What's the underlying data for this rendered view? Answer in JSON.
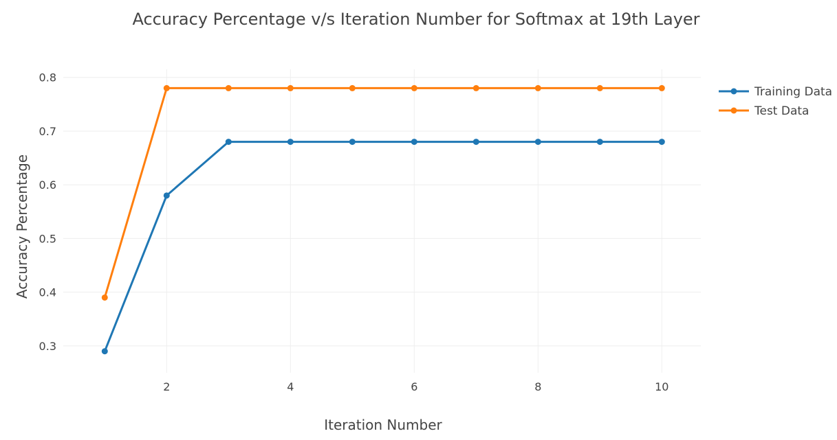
{
  "chart_data": {
    "type": "line",
    "title": "Accuracy Percentage v/s Iteration Number for Softmax at 19th Layer",
    "xlabel": "Iteration Number",
    "ylabel": "Accuracy Percentage",
    "x": [
      1,
      2,
      3,
      4,
      5,
      6,
      7,
      8,
      9,
      10
    ],
    "xticks": [
      2,
      4,
      6,
      8,
      10
    ],
    "xtick_labels": [
      "2",
      "4",
      "6",
      "8",
      "10"
    ],
    "yticks": [
      0.3,
      0.4,
      0.5,
      0.6,
      0.7,
      0.8
    ],
    "ytick_labels": [
      "0.3",
      "0.4",
      "0.5",
      "0.6",
      "0.7",
      "0.8"
    ],
    "xlim": [
      0.33,
      10.63
    ],
    "ylim": [
      0.25,
      0.815
    ],
    "grid": true,
    "legend_position": "top-right",
    "series": [
      {
        "name": "Training Data",
        "color": "#1f77b4",
        "values": [
          0.29,
          0.58,
          0.68,
          0.68,
          0.68,
          0.68,
          0.68,
          0.68,
          0.68,
          0.68
        ]
      },
      {
        "name": "Test Data",
        "color": "#ff7f0e",
        "values": [
          0.39,
          0.78,
          0.78,
          0.78,
          0.78,
          0.78,
          0.78,
          0.78,
          0.78,
          0.78
        ]
      }
    ]
  }
}
